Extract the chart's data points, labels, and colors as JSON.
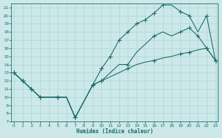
{
  "xlabel": "Humidex (Indice chaleur)",
  "bg_color": "#cce8e8",
  "grid_color": "#b0d8d8",
  "line_color": "#1a6868",
  "xlim": [
    -0.3,
    23.3
  ],
  "ylim": [
    7,
    21.5
  ],
  "yticks": [
    7,
    8,
    9,
    10,
    11,
    12,
    13,
    14,
    15,
    16,
    17,
    18,
    19,
    20,
    21
  ],
  "xticks": [
    0,
    1,
    2,
    3,
    4,
    5,
    6,
    7,
    8,
    9,
    10,
    11,
    12,
    13,
    14,
    15,
    16,
    17,
    18,
    19,
    20,
    21,
    22,
    23
  ],
  "line_bottom_x": [
    0,
    1,
    2,
    3,
    4,
    5,
    6,
    7,
    8,
    9,
    10,
    11,
    12,
    13,
    14,
    15,
    16,
    17,
    18,
    19,
    20,
    21,
    22,
    23
  ],
  "line_bottom_y": [
    13,
    12,
    11,
    10,
    10,
    10,
    10,
    7.5,
    9.5,
    11.5,
    12,
    12.5,
    13,
    13.5,
    14,
    14.3,
    14.5,
    14.8,
    15,
    15.3,
    15.5,
    15.8,
    16,
    14.5
  ],
  "line_mid_x": [
    0,
    1,
    2,
    3,
    4,
    5,
    6,
    7,
    8,
    9,
    10,
    11,
    12,
    13,
    14,
    15,
    16,
    17,
    18,
    19,
    20,
    21,
    22,
    23
  ],
  "line_mid_y": [
    13,
    12,
    11,
    10,
    10,
    10,
    10,
    7.5,
    9.5,
    11.5,
    12,
    13,
    14,
    14,
    15.5,
    16.5,
    17.5,
    18,
    17.5,
    18,
    18.5,
    17.5,
    16,
    14.5
  ],
  "line_top_x": [
    0,
    1,
    2,
    3,
    4,
    5,
    6,
    7,
    8,
    9,
    10,
    11,
    12,
    13,
    14,
    15,
    16,
    17,
    18,
    19,
    20,
    21,
    22,
    23
  ],
  "line_top_y": [
    13,
    12,
    11,
    10,
    10,
    10,
    10,
    7.5,
    9.5,
    11.5,
    13.5,
    15,
    17,
    18,
    19,
    19.5,
    20.3,
    21.3,
    21.3,
    20.5,
    20,
    18,
    20,
    14.5
  ],
  "marker_bottom_x": [
    0,
    1,
    2,
    3,
    5,
    7,
    9,
    10,
    13,
    16,
    19,
    20,
    22,
    23
  ],
  "marker_bottom_y": [
    13,
    12,
    11,
    10,
    10,
    7.5,
    11.5,
    12,
    13.5,
    14.5,
    15.3,
    15.5,
    16,
    14.5
  ],
  "marker_mid_x": [
    0,
    1,
    2,
    3,
    5,
    7,
    9,
    10,
    13,
    16,
    19,
    20,
    21,
    22,
    23
  ],
  "marker_mid_y": [
    13,
    12,
    11,
    10,
    10,
    7.5,
    11.5,
    12,
    14,
    17.5,
    18,
    18.5,
    17.5,
    16,
    14.5
  ],
  "marker_top_x": [
    0,
    1,
    2,
    3,
    5,
    7,
    9,
    10,
    11,
    12,
    13,
    14,
    15,
    16,
    17,
    19,
    20,
    22,
    23
  ],
  "marker_top_y": [
    13,
    12,
    11,
    10,
    10,
    7.5,
    11.5,
    13.5,
    15,
    17,
    18,
    19,
    19.5,
    20.3,
    21.3,
    20.5,
    20,
    20,
    14.5
  ]
}
